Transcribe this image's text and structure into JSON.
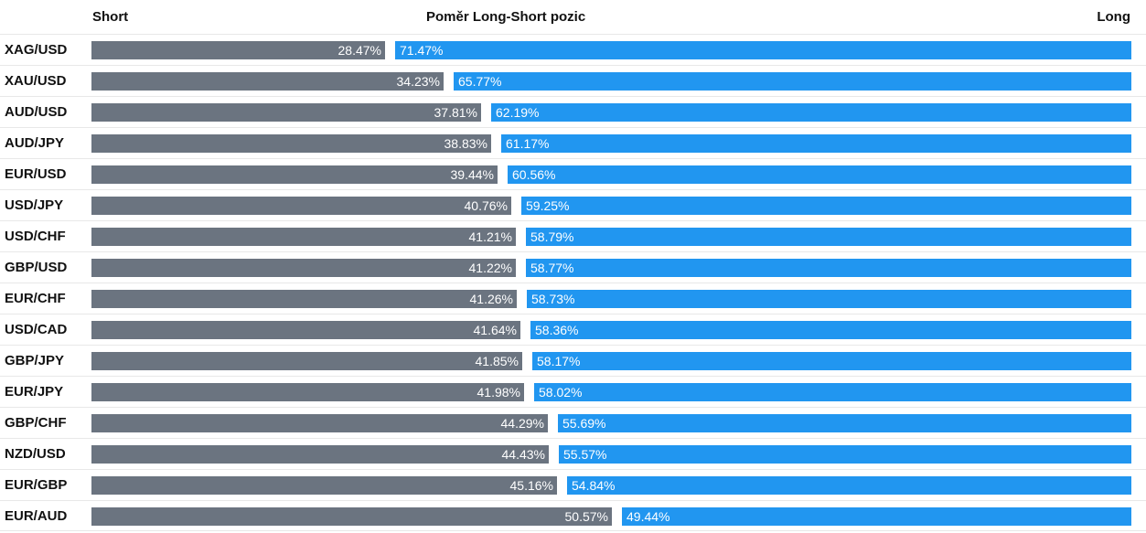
{
  "header": {
    "short_label": "Short",
    "title": "Poměr Long-Short pozic",
    "long_label": "Long"
  },
  "colors": {
    "short_bar": "#6b7480",
    "long_bar": "#2196f0"
  },
  "chart_data": {
    "type": "bar",
    "orientation": "horizontal",
    "stacked": true,
    "title": "Poměr Long-Short pozic",
    "categories": [
      "XAG/USD",
      "XAU/USD",
      "AUD/USD",
      "AUD/JPY",
      "EUR/USD",
      "USD/JPY",
      "USD/CHF",
      "GBP/USD",
      "EUR/CHF",
      "USD/CAD",
      "GBP/JPY",
      "EUR/JPY",
      "GBP/CHF",
      "NZD/USD",
      "EUR/GBP",
      "EUR/AUD"
    ],
    "series": [
      {
        "name": "Short",
        "values": [
          28.47,
          34.23,
          37.81,
          38.83,
          39.44,
          40.76,
          41.21,
          41.22,
          41.26,
          41.64,
          41.85,
          41.98,
          44.29,
          44.43,
          45.16,
          50.57
        ]
      },
      {
        "name": "Long",
        "values": [
          71.47,
          65.77,
          62.19,
          61.17,
          60.56,
          59.25,
          58.79,
          58.77,
          58.73,
          58.36,
          58.17,
          58.02,
          55.69,
          55.57,
          54.84,
          49.44
        ]
      }
    ],
    "labels": {
      "short": [
        "28.47%",
        "34.23%",
        "37.81%",
        "38.83%",
        "39.44%",
        "40.76%",
        "41.21%",
        "41.22%",
        "41.26%",
        "41.64%",
        "41.85%",
        "41.98%",
        "44.29%",
        "44.43%",
        "45.16%",
        "50.57%"
      ],
      "long": [
        "71.47%",
        "65.77%",
        "62.19%",
        "61.17%",
        "60.56%",
        "59.25%",
        "58.79%",
        "58.77%",
        "58.73%",
        "58.36%",
        "58.17%",
        "58.02%",
        "55.69%",
        "55.57%",
        "54.84%",
        "49.44%"
      ]
    },
    "xlim": [
      0,
      100
    ],
    "legend": "none",
    "grid": false
  }
}
